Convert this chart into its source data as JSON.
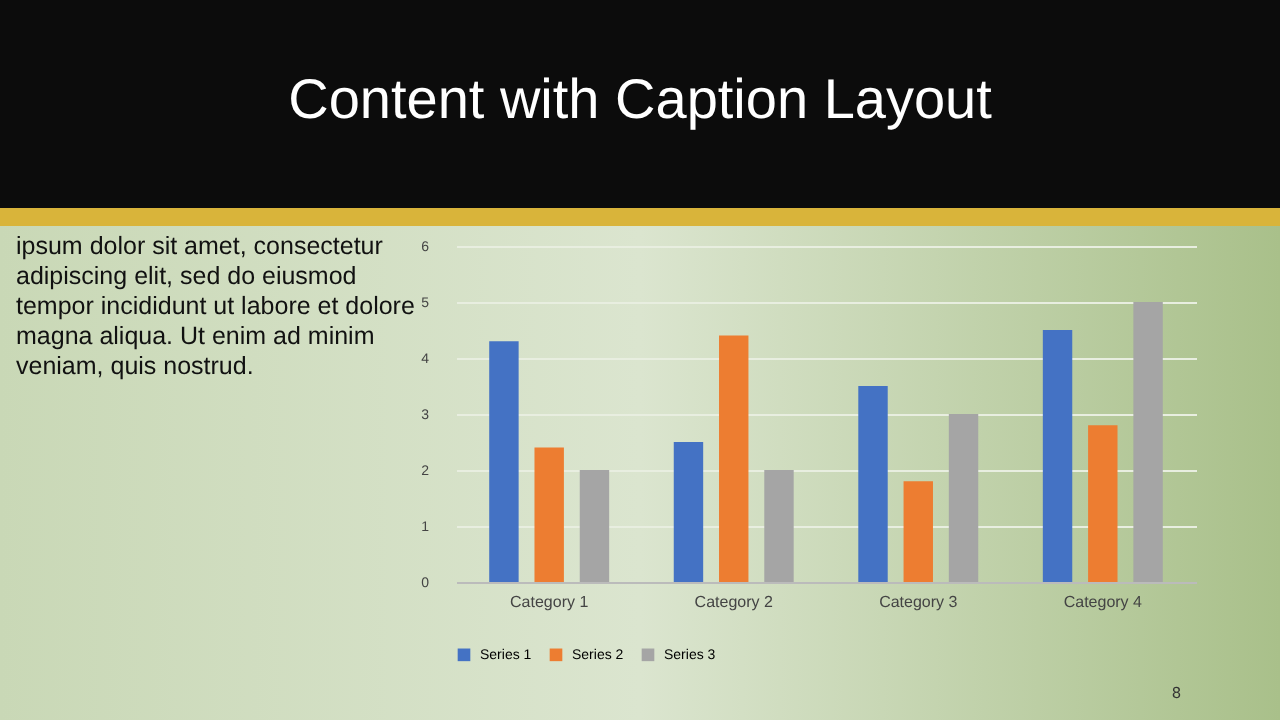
{
  "chart_data": {
    "type": "bar",
    "title": "Content with Caption Layout",
    "categories": [
      "Category 1",
      "Category 2",
      "Category 3",
      "Category 4"
    ],
    "series": [
      {
        "name": "Series 1",
        "color": "#4472c4",
        "values": [
          4.3,
          2.5,
          3.5,
          4.5
        ]
      },
      {
        "name": "Series 2",
        "color": "#ed7d31",
        "values": [
          2.4,
          4.4,
          1.8,
          2.8
        ]
      },
      {
        "name": "Series 3",
        "color": "#a5a5a5",
        "values": [
          2,
          2,
          3,
          5
        ]
      }
    ],
    "ylim": [
      0,
      6
    ],
    "yticks": [
      0,
      1,
      2,
      3,
      4,
      5,
      6
    ],
    "grid": "y",
    "legend": "bottom",
    "annotations": [
      "ipsum dolor sit amet, consectetur adipiscing elit, sed do eiusmod tempor incididunt ut labore et dolore magna aliqua. Ut enim ad minim veniam, quis nostrud.",
      "8"
    ]
  }
}
